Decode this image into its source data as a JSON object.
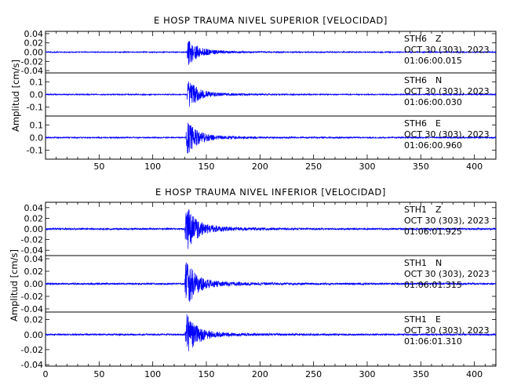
{
  "chart_data": [
    {
      "type": "line",
      "title": "E HOSP TRAUMA NIVEL SUPERIOR [VELOCIDAD]",
      "ylabel": "Amplitud [cm/s]",
      "xlim": [
        0,
        420
      ],
      "xticks": [
        "50",
        "100",
        "150",
        "200",
        "250",
        "300",
        "350",
        "400"
      ],
      "grid": false,
      "color": "#0000ff",
      "traces": [
        {
          "station": "STH6",
          "component": "Z",
          "date": "OCT 30 (303), 2023",
          "time": "01:06:00.015",
          "ylim": [
            -0.045,
            0.045
          ],
          "ytick_values": [
            -0.04,
            -0.02,
            0.0,
            0.02,
            0.04
          ],
          "ytick_labels": [
            "-0.04",
            "-0.02",
            "0.00",
            "0.02",
            "0.04"
          ],
          "peak_amplitude": 0.03,
          "peak_time": 136
        },
        {
          "station": "STH6",
          "component": "N",
          "date": "OCT 30 (303), 2023",
          "time": "01:06:00.030",
          "ylim": [
            -0.17,
            0.17
          ],
          "ytick_values": [
            -0.1,
            0.0,
            0.1
          ],
          "ytick_labels": [
            "-0.1",
            "0.0",
            "0.1"
          ],
          "peak_amplitude": 0.12,
          "peak_time": 136
        },
        {
          "station": "STH6",
          "component": "E",
          "date": "OCT 30 (303), 2023",
          "time": "01:06:00.960",
          "ylim": [
            -0.17,
            0.17
          ],
          "ytick_values": [
            -0.1,
            0.0,
            0.1
          ],
          "ytick_labels": [
            "-0.1",
            "0.0",
            "0.1"
          ],
          "peak_amplitude": 0.14,
          "peak_time": 135
        }
      ]
    },
    {
      "type": "line",
      "title": "E HOSP TRAUMA NIVEL INFERIOR [VELOCIDAD]",
      "ylabel": "Amplitud [cm/s]",
      "xlim": [
        0,
        420
      ],
      "xticks": [
        "0",
        "50",
        "100",
        "150",
        "200",
        "250",
        "300",
        "350",
        "400"
      ],
      "grid": false,
      "color": "#0000ff",
      "traces": [
        {
          "station": "STH1",
          "component": "Z",
          "date": "OCT 30 (303), 2023",
          "time": "01:06:01.925",
          "ylim": [
            -0.05,
            0.05
          ],
          "ytick_values": [
            -0.04,
            -0.02,
            0.0,
            0.02,
            0.04
          ],
          "ytick_labels": [
            "-0.04",
            "-0.02",
            "0.00",
            "0.02",
            "0.04"
          ],
          "peak_amplitude": 0.046,
          "peak_time": 134
        },
        {
          "station": "STH1",
          "component": "N",
          "date": "OCT 30 (303), 2023",
          "time": "01:06:01.315",
          "ylim": [
            -0.045,
            0.045
          ],
          "ytick_values": [
            -0.04,
            -0.02,
            0.0,
            0.02,
            0.04
          ],
          "ytick_labels": [
            "-0.04",
            "-0.02",
            "0.00",
            "0.02",
            "0.04"
          ],
          "peak_amplitude": 0.04,
          "peak_time": 134
        },
        {
          "station": "STH1",
          "component": "E",
          "date": "OCT 30 (303), 2023",
          "time": "01:06:01.310",
          "ylim": [
            -0.042,
            0.03
          ],
          "ytick_values": [
            -0.04,
            -0.02,
            0.0,
            0.02
          ],
          "ytick_labels": [
            "-0.04",
            "-0.02",
            "0.00",
            "0.02"
          ],
          "peak_amplitude": 0.03,
          "peak_time": 134
        }
      ]
    }
  ]
}
